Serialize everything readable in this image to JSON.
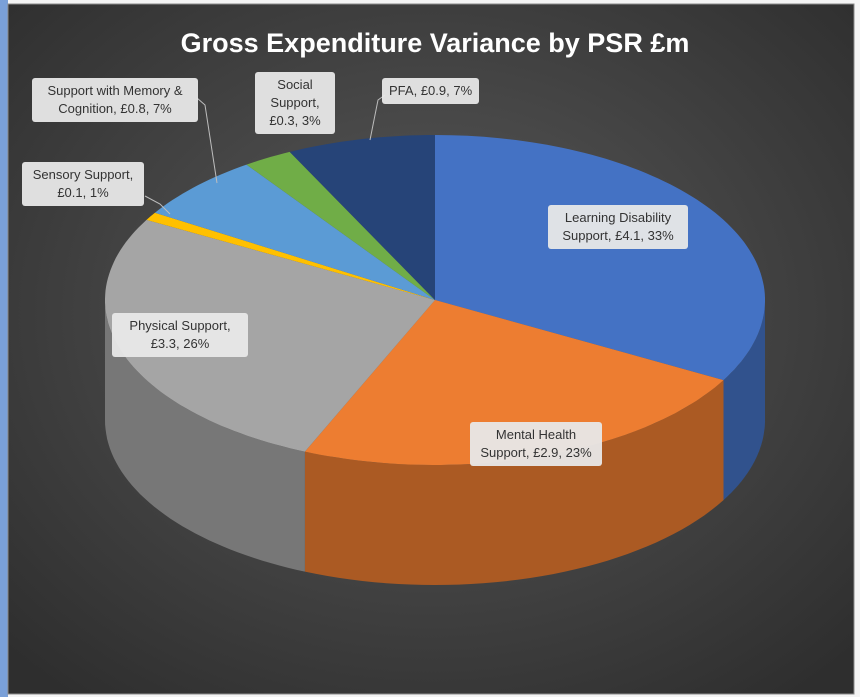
{
  "chart_data": {
    "type": "pie3d",
    "title": "Gross Expenditure Variance by PSR £m",
    "categories": [
      "Learning Disability Support",
      "Mental Health Support",
      "Physical Support",
      "Sensory Support",
      "Support with Memory & Cognition",
      "Social Support",
      "PFA"
    ],
    "values": [
      4.1,
      2.9,
      3.3,
      0.1,
      0.8,
      0.3,
      0.9
    ],
    "value_labels": [
      "£4.1",
      "£2.9",
      "£3.3",
      "£0.1",
      "£0.8",
      "£0.3",
      "£0.9"
    ],
    "percentages": [
      33,
      23,
      26,
      1,
      7,
      3,
      7
    ],
    "percentage_labels": [
      "33%",
      "23%",
      "26%",
      "1%",
      "7%",
      "3%",
      "7%"
    ],
    "colors": [
      "#4472c4",
      "#ed7d31",
      "#a5a5a5",
      "#ffc000",
      "#5b9bd5",
      "#70ad47",
      "#264478"
    ]
  }
}
